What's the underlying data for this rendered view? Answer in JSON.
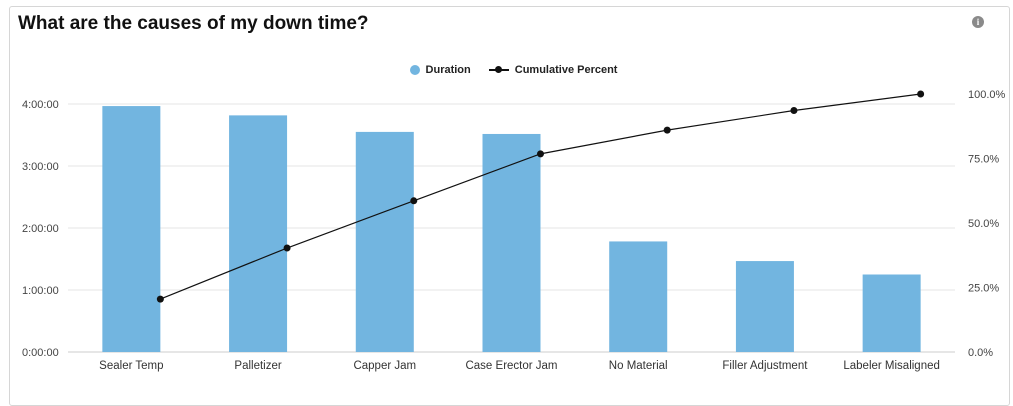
{
  "title": "What are the causes of my down time?",
  "info_icon": "info-icon",
  "legend": {
    "duration_label": "Duration",
    "cumulative_label": "Cumulative Percent"
  },
  "colors": {
    "bar": "#72b5e0",
    "line": "#111111",
    "grid": "#e6e6e6"
  },
  "chart_data": {
    "type": "bar",
    "categories": [
      "Sealer Temp",
      "Palletizer",
      "Capper Jam",
      "Case Erector Jam",
      "No Material",
      "Filler Adjustment",
      "Labeler Misaligned"
    ],
    "series": [
      {
        "name": "Duration",
        "type": "bar",
        "axis": "left",
        "values_minutes": [
          238,
          229,
          213,
          211,
          107,
          88,
          75
        ]
      },
      {
        "name": "Cumulative Percent",
        "type": "line",
        "axis": "right",
        "values": [
          20.5,
          40.3,
          58.6,
          76.8,
          86.0,
          93.6,
          100.0
        ]
      }
    ],
    "left_axis": {
      "ticks": [
        "0:00:00",
        "1:00:00",
        "2:00:00",
        "3:00:00",
        "4:00:00"
      ],
      "range_minutes": [
        0,
        240
      ]
    },
    "right_axis": {
      "ticks": [
        "0.0%",
        "25.0%",
        "50.0%",
        "75.0%",
        "100.0%"
      ],
      "range": [
        0,
        100
      ]
    },
    "grid": true,
    "legend_position": "top-center"
  }
}
